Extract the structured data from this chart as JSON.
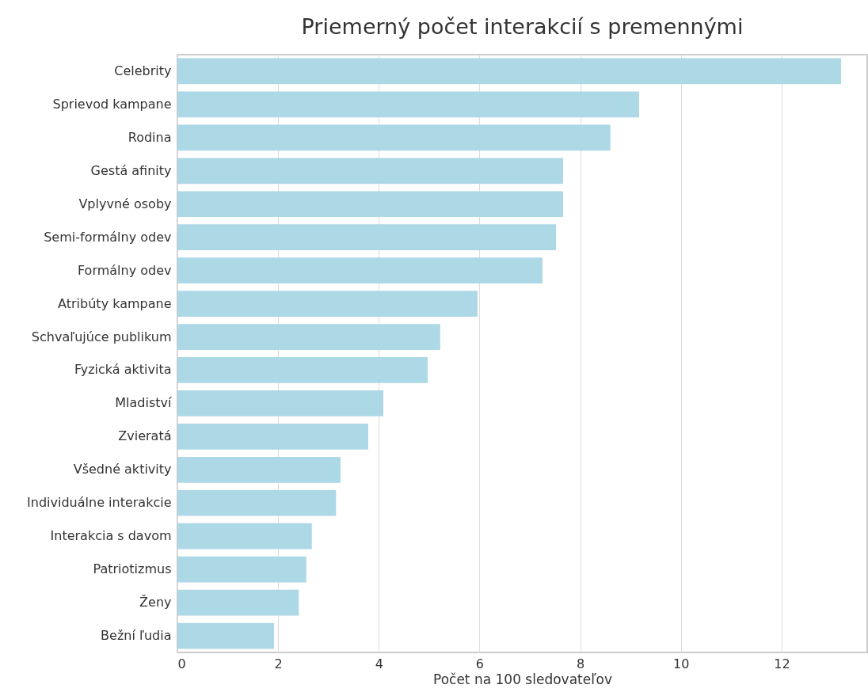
{
  "chart_data": {
    "type": "bar",
    "orientation": "horizontal",
    "title": "Priemerný počet interakcií s premennými",
    "xlabel": "Počet na 100 sledovateľov",
    "categories": [
      "Celebrity",
      "Sprievod kampane",
      "Rodina",
      "Gestá afinity",
      "Vplyvné osoby",
      "Semi-formálny odev",
      "Formálny odev",
      "Atribúty kampane",
      "Schvaľujúce publikum",
      "Fyzická aktivita",
      "Mladiství",
      "Zvieratá",
      "Všedné aktivity",
      "Individuálne interakcie",
      "Interakcia s davom",
      "Patriotizmus",
      "Ženy",
      "Bežní ľudia"
    ],
    "values": [
      13.18,
      9.17,
      8.6,
      7.66,
      7.66,
      7.52,
      7.25,
      5.96,
      5.22,
      4.97,
      4.09,
      3.79,
      3.24,
      3.15,
      2.67,
      2.56,
      2.41,
      1.92
    ],
    "color": "#add8e6",
    "xlim": [
      0,
      13.7
    ],
    "xticks": [
      0,
      2,
      4,
      6,
      8,
      10,
      12
    ],
    "grid": "x"
  }
}
